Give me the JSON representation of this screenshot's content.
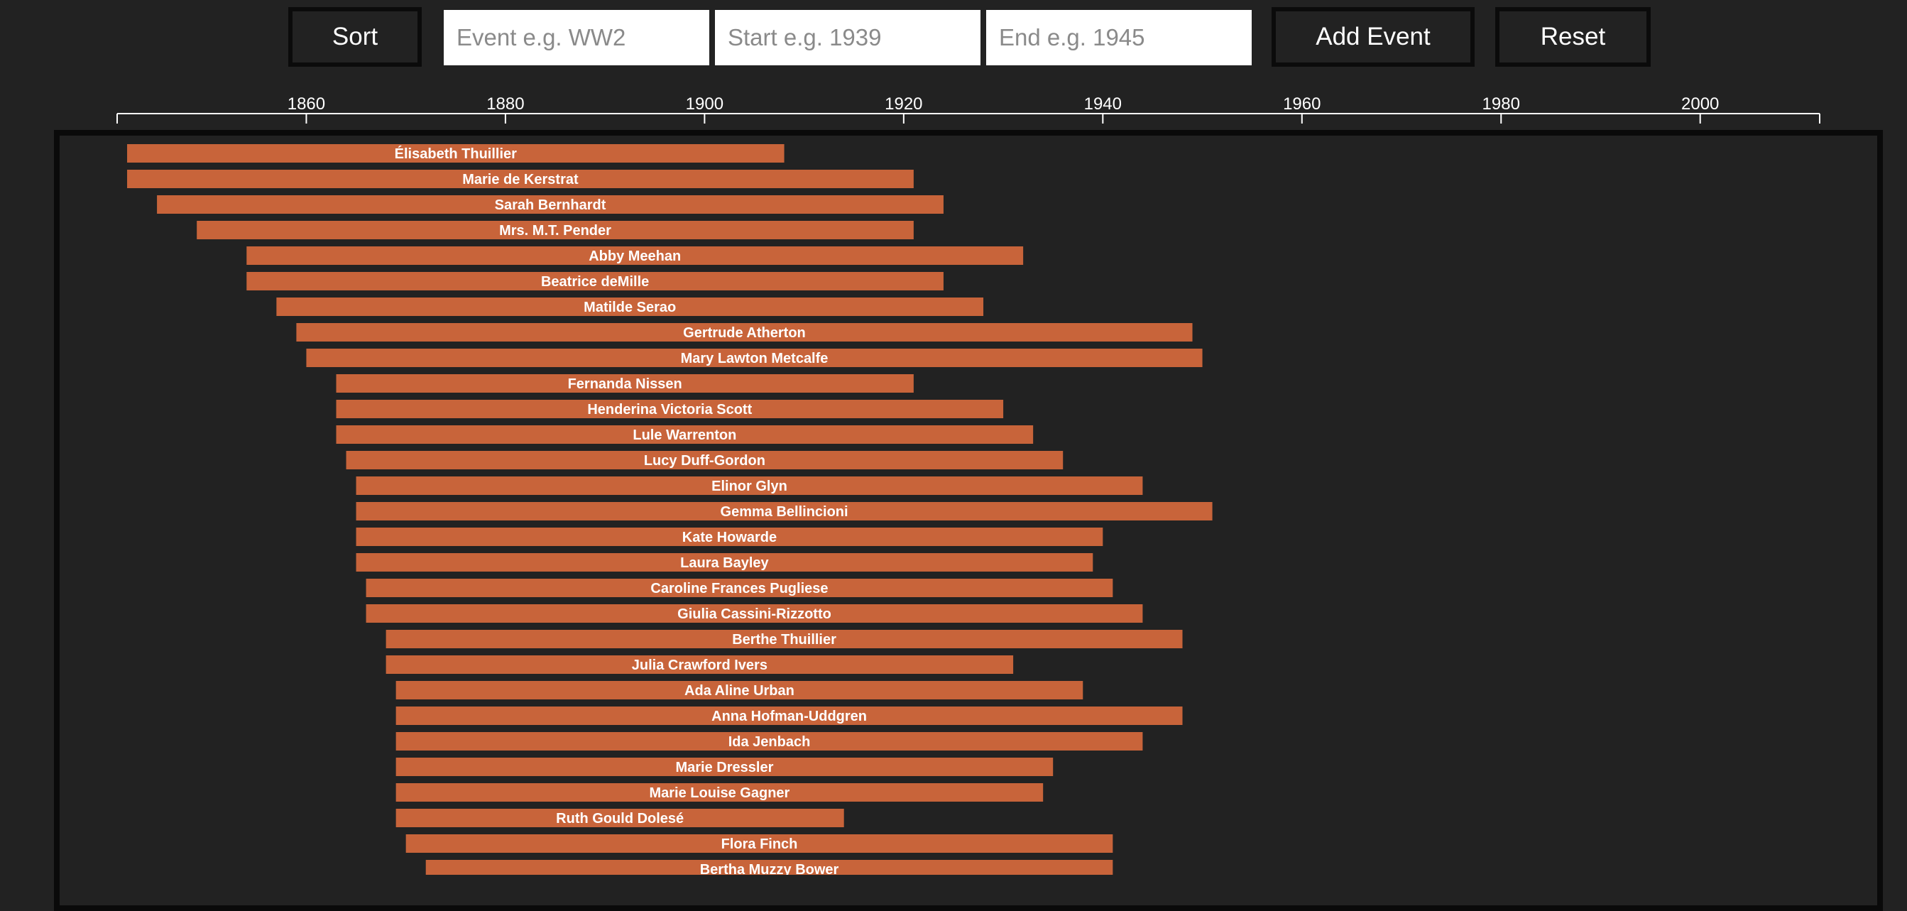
{
  "toolbar": {
    "sort_label": "Sort",
    "event_placeholder": "Event e.g. WW2",
    "start_placeholder": "Start e.g. 1939",
    "end_placeholder": "End e.g. 1945",
    "add_label": "Add Event",
    "reset_label": "Reset"
  },
  "colors": {
    "background": "#222222",
    "bar": "#c8643a",
    "text": "#ffffff",
    "frame_border": "#0a0a0a"
  },
  "chart_data": {
    "type": "timeline",
    "title": "",
    "xlabel": "",
    "ylabel": "",
    "xlim": [
      1841,
      2012
    ],
    "ticks": [
      1860,
      1880,
      1900,
      1920,
      1940,
      1960,
      1980,
      2000
    ],
    "grid": false,
    "events": [
      {
        "name": "Élisabeth Thuillier",
        "start": 1842,
        "end": 1908
      },
      {
        "name": "Marie de Kerstrat",
        "start": 1842,
        "end": 1921
      },
      {
        "name": "Sarah Bernhardt",
        "start": 1845,
        "end": 1924
      },
      {
        "name": "Mrs. M.T. Pender",
        "start": 1849,
        "end": 1921
      },
      {
        "name": "Abby Meehan",
        "start": 1854,
        "end": 1932
      },
      {
        "name": "Beatrice deMille",
        "start": 1854,
        "end": 1924
      },
      {
        "name": "Matilde Serao",
        "start": 1857,
        "end": 1928
      },
      {
        "name": "Gertrude Atherton",
        "start": 1859,
        "end": 1949
      },
      {
        "name": "Mary Lawton Metcalfe",
        "start": 1860,
        "end": 1950
      },
      {
        "name": "Fernanda Nissen",
        "start": 1863,
        "end": 1921
      },
      {
        "name": "Henderina Victoria Scott",
        "start": 1863,
        "end": 1930
      },
      {
        "name": "Lule Warrenton",
        "start": 1863,
        "end": 1933
      },
      {
        "name": "Lucy Duff-Gordon",
        "start": 1864,
        "end": 1936
      },
      {
        "name": "Elinor Glyn",
        "start": 1865,
        "end": 1944
      },
      {
        "name": "Gemma Bellincioni",
        "start": 1865,
        "end": 1951
      },
      {
        "name": "Kate Howarde",
        "start": 1865,
        "end": 1940
      },
      {
        "name": "Laura Bayley",
        "start": 1865,
        "end": 1939
      },
      {
        "name": "Caroline Frances Pugliese",
        "start": 1866,
        "end": 1941
      },
      {
        "name": "Giulia Cassini-Rizzotto",
        "start": 1866,
        "end": 1944
      },
      {
        "name": "Berthe Thuillier",
        "start": 1868,
        "end": 1948
      },
      {
        "name": "Julia Crawford Ivers",
        "start": 1868,
        "end": 1931
      },
      {
        "name": "Ada Aline Urban",
        "start": 1869,
        "end": 1938
      },
      {
        "name": "Anna Hofman-Uddgren",
        "start": 1869,
        "end": 1948
      },
      {
        "name": "Ida Jenbach",
        "start": 1869,
        "end": 1944
      },
      {
        "name": "Marie Dressler",
        "start": 1869,
        "end": 1935
      },
      {
        "name": "Marie Louise Gagner",
        "start": 1869,
        "end": 1934
      },
      {
        "name": "Ruth Gould Dolesé",
        "start": 1869,
        "end": 1914
      },
      {
        "name": "Flora Finch",
        "start": 1870,
        "end": 1941
      },
      {
        "name": "Bertha Muzzy Bower",
        "start": 1872,
        "end": 1941
      }
    ]
  }
}
